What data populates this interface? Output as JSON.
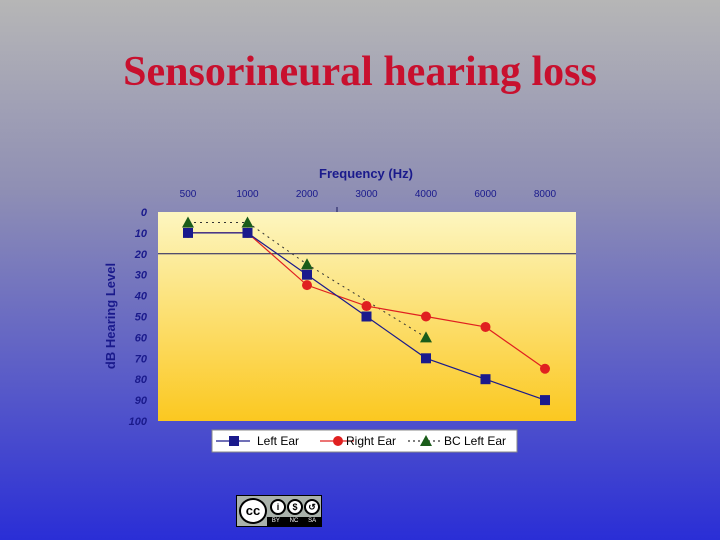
{
  "slide": {
    "title": "Sensorineural hearing loss"
  },
  "license_badge": {
    "main": "cc",
    "icons": [
      "i",
      "$",
      "↺"
    ],
    "labels": [
      "BY",
      "NC",
      "SA"
    ]
  },
  "chart_data": {
    "type": "line",
    "xlabel": "Frequency (Hz)",
    "ylabel": "dB Hearing Level",
    "categories": [
      "500",
      "1000",
      "2000",
      "3000",
      "4000",
      "6000",
      "8000"
    ],
    "ylim": [
      0,
      100
    ],
    "y_inverted": true,
    "yticks": [
      0,
      10,
      20,
      30,
      40,
      50,
      60,
      70,
      80,
      90,
      100
    ],
    "reference_line_y": 20,
    "legend_position": "bottom",
    "series": [
      {
        "name": "Left Ear",
        "marker": "square",
        "color": "#1a1a8c",
        "line": "solid",
        "values": [
          10,
          10,
          30,
          50,
          70,
          80,
          90
        ]
      },
      {
        "name": "Right Ear",
        "marker": "circle",
        "color": "#e02020",
        "line": "solid",
        "values": [
          10,
          10,
          35,
          45,
          50,
          55,
          75
        ]
      },
      {
        "name": "BC Left Ear",
        "marker": "triangle",
        "color": "#1a5c1a",
        "line": "dotted",
        "values": [
          5,
          5,
          25,
          null,
          60,
          null,
          null
        ]
      }
    ]
  }
}
